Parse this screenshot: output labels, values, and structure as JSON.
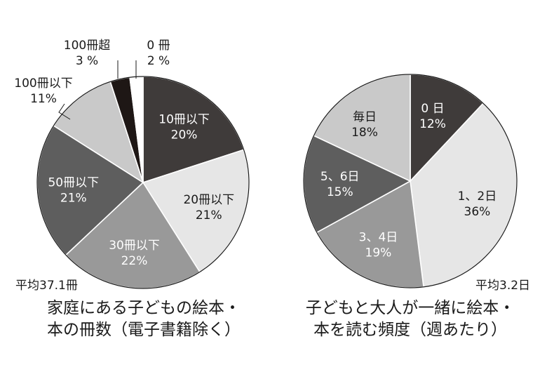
{
  "chart_data": [
    {
      "type": "pie",
      "title_lines": [
        "家庭にある子どもの絵本・",
        "本の冊数（電子書籍除く）"
      ],
      "average_label": "平均37.1冊",
      "start_angle_deg": 0,
      "slices": [
        {
          "label": "10冊以下",
          "value": 20,
          "value_label": "20%",
          "color": "#3f3b3a",
          "text_color": "#ffffff",
          "placement": "inside"
        },
        {
          "label": "20冊以下",
          "value": 21,
          "value_label": "21%",
          "color": "#e6e6e6",
          "text_color": "#1a1a1a",
          "placement": "inside"
        },
        {
          "label": "30冊以下",
          "value": 22,
          "value_label": "22%",
          "color": "#999999",
          "text_color": "#ffffff",
          "placement": "inside"
        },
        {
          "label": "50冊以下",
          "value": 21,
          "value_label": "21%",
          "color": "#5e5e5e",
          "text_color": "#ffffff",
          "placement": "inside"
        },
        {
          "label": "100冊以下",
          "value": 11,
          "value_label": "11%",
          "color": "#c9c9c9",
          "text_color": "#1a1a1a",
          "placement": "outside"
        },
        {
          "label": "100冊超",
          "value": 3,
          "value_label": "3 %",
          "color": "#1e1715",
          "text_color": "#1a1a1a",
          "placement": "outside"
        },
        {
          "label": "0 冊",
          "value": 2,
          "value_label": "2 %",
          "color": "#ffffff",
          "text_color": "#1a1a1a",
          "placement": "outside"
        }
      ]
    },
    {
      "type": "pie",
      "title_lines": [
        "子どもと大人が一緒に絵本・",
        "本を読む頻度（週あたり）"
      ],
      "average_label": "平均3.2日",
      "start_angle_deg": 0,
      "slices": [
        {
          "label": "0 日",
          "value": 12,
          "value_label": "12%",
          "color": "#3f3b3a",
          "text_color": "#ffffff",
          "placement": "inside"
        },
        {
          "label": "1、2日",
          "value": 36,
          "value_label": "36%",
          "color": "#e6e6e6",
          "text_color": "#1a1a1a",
          "placement": "inside"
        },
        {
          "label": "3、4日",
          "value": 19,
          "value_label": "19%",
          "color": "#999999",
          "text_color": "#ffffff",
          "placement": "inside"
        },
        {
          "label": "5、6日",
          "value": 15,
          "value_label": "15%",
          "color": "#5e5e5e",
          "text_color": "#ffffff",
          "placement": "inside"
        },
        {
          "label": "毎日",
          "value": 18,
          "value_label": "18%",
          "color": "#c9c9c9",
          "text_color": "#1a1a1a",
          "placement": "inside"
        }
      ]
    }
  ]
}
